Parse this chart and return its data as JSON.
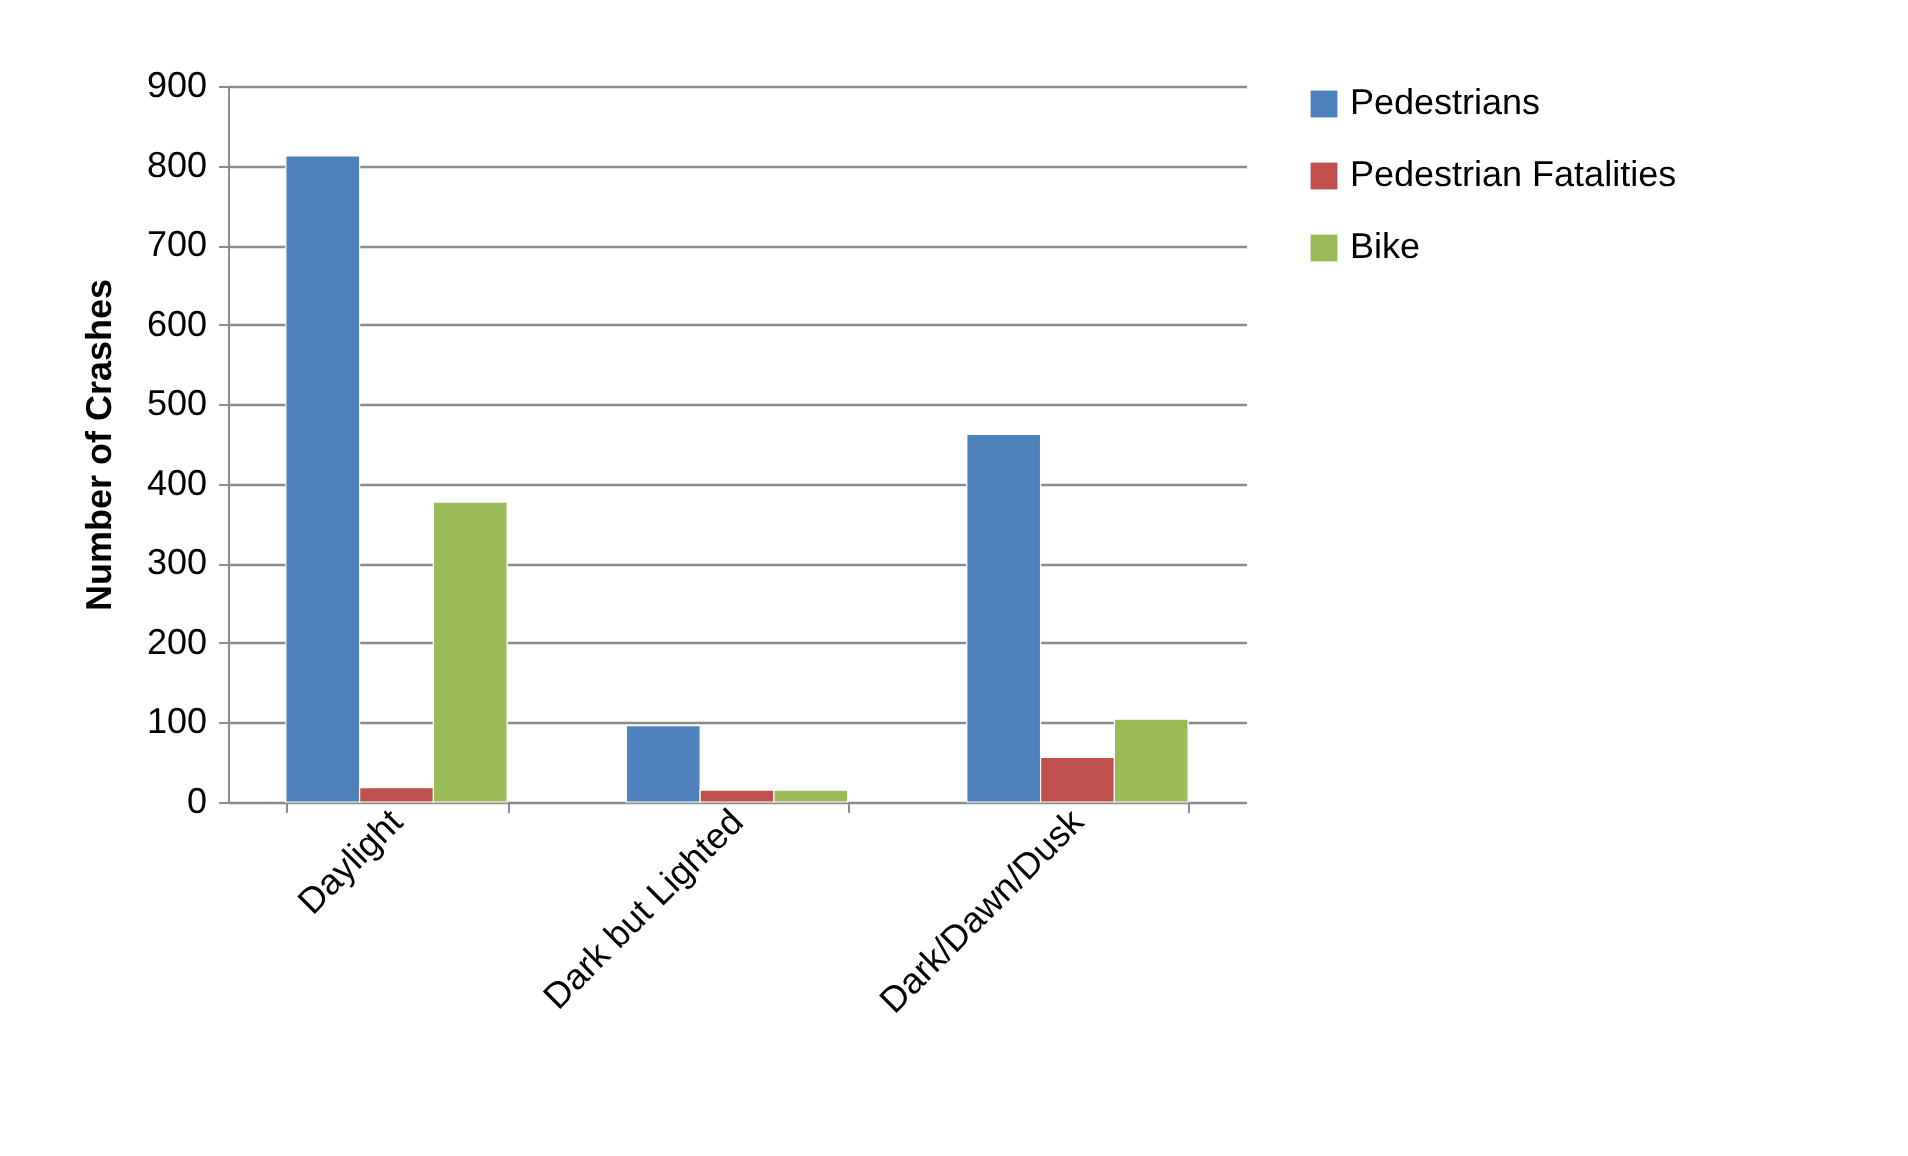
{
  "chart_data": {
    "type": "bar",
    "ylabel": "Number of Crashes",
    "categories": [
      "Daylight",
      "Dark but Lighted",
      "Dark/Dawn/Dusk"
    ],
    "series": [
      {
        "name": "Pedestrians",
        "color": "#4f81bd",
        "values": [
          812,
          96,
          462
        ]
      },
      {
        "name": "Pedestrian Fatalities",
        "color": "#c0504d",
        "values": [
          18,
          15,
          56
        ]
      },
      {
        "name": "Bike",
        "color": "#9bbb59",
        "values": [
          377,
          15,
          104
        ]
      }
    ],
    "ylim": [
      0,
      900
    ],
    "yticks": [
      0,
      100,
      200,
      300,
      400,
      500,
      600,
      700,
      800,
      900
    ],
    "grid": "y",
    "legend": "right"
  }
}
